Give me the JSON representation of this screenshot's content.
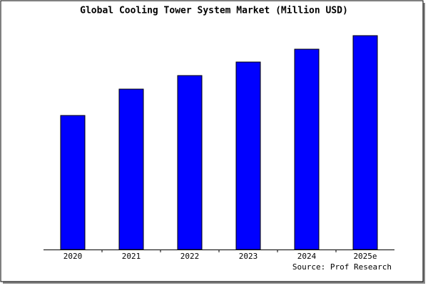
{
  "chart_data": {
    "type": "bar",
    "title": "Global Cooling Tower System Market (Million USD)",
    "categories": [
      "2020",
      "2021",
      "2022",
      "2023",
      "2024",
      "2025e"
    ],
    "values": [
      188,
      225,
      244,
      263,
      281,
      300
    ],
    "color": "#0000ff",
    "source": "Source: Prof Research"
  }
}
